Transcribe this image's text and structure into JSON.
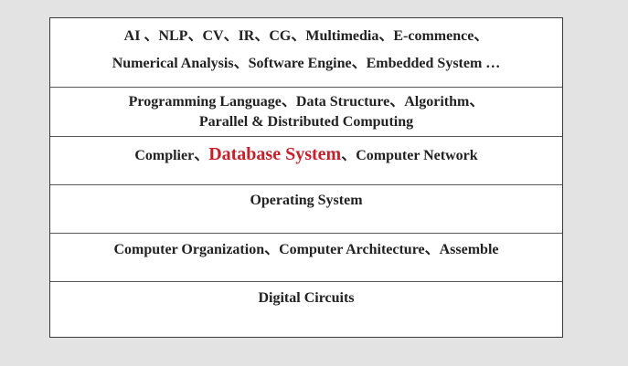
{
  "colors": {
    "background": "#e3e3e3",
    "panel": "#ffffff",
    "text": "#222222",
    "highlight": "#c8202a",
    "border": "#3a3a3a"
  },
  "layers": [
    {
      "lines": [
        "AI 、NLP、CV、IR、CG、Multimedia、E-commence、",
        "Numerical Analysis、Software Engine、Embedded System …"
      ]
    },
    {
      "lines": [
        "Programming Language、Data Structure、Algorithm、",
        "Parallel & Distributed Computing"
      ]
    },
    {
      "before": "Complier、",
      "highlight": "Database System",
      "after": "、Computer Network"
    },
    {
      "lines": [
        "Operating System"
      ]
    },
    {
      "lines": [
        "Computer Organization、Computer Architecture、Assemble"
      ]
    },
    {
      "lines": [
        "Digital  Circuits"
      ]
    }
  ]
}
